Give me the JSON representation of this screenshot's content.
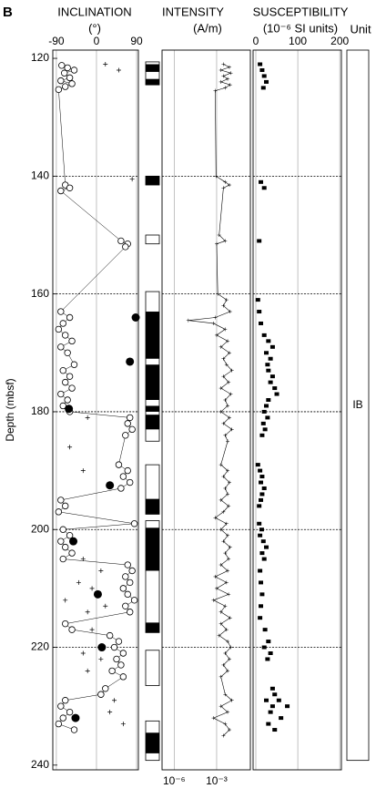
{
  "panel_label": "B",
  "chart_data": [
    {
      "type": "scatter",
      "title": "INCLINATION",
      "subtitle": "(°)",
      "ylabel": "Depth (mbsf)",
      "ylim": [
        118.6,
        240.8
      ],
      "yticks": [
        120,
        140,
        160,
        180,
        200,
        220,
        240
      ],
      "grid_lines": [
        140,
        160,
        180,
        200,
        220
      ],
      "grid": true,
      "xlim": [
        -98,
        94
      ],
      "xticks": [
        -90,
        0,
        90
      ],
      "xtick_position": "top",
      "series": [
        {
          "marker": "open-circle",
          "connected": true,
          "color": "#000000",
          "depth": [
            121.2,
            121.6,
            122.0,
            122.5,
            123.3,
            123.8,
            124.3,
            124.8,
            125.3,
            141.5,
            142.0,
            142.5,
            151,
            151.5,
            152,
            163,
            164,
            165,
            166,
            167,
            168,
            169,
            170,
            172,
            173,
            174,
            175,
            176,
            177,
            178,
            179,
            180,
            181,
            182,
            183,
            184,
            189,
            190,
            191,
            192,
            193,
            195,
            196,
            197,
            199,
            200,
            201,
            202,
            203,
            204,
            205,
            206,
            207,
            208,
            209,
            210,
            211,
            212,
            213,
            214,
            216,
            217,
            218,
            219,
            220,
            221,
            222,
            223,
            224,
            225,
            227,
            228,
            229,
            230,
            231,
            232,
            233,
            234
          ],
          "values": [
            -78,
            -65,
            -50,
            -72,
            -60,
            -80,
            -55,
            -70,
            -85,
            -70,
            -60,
            -80,
            55,
            70,
            65,
            -80,
            -60,
            -75,
            -85,
            -70,
            -55,
            -80,
            -65,
            -50,
            -75,
            -60,
            -70,
            -55,
            -80,
            -65,
            -75,
            -60,
            75,
            70,
            80,
            65,
            50,
            70,
            60,
            75,
            55,
            -80,
            -70,
            -85,
            85,
            -75,
            -60,
            -80,
            -70,
            -55,
            -75,
            70,
            80,
            65,
            75,
            60,
            70,
            85,
            65,
            75,
            -70,
            -55,
            30,
            50,
            40,
            60,
            45,
            55,
            35,
            60,
            20,
            10,
            -70,
            -80,
            -60,
            -75,
            -85,
            -50
          ]
        },
        {
          "marker": "cross",
          "connected": false,
          "color": "#000000",
          "depth": [
            121,
            122,
            140.5,
            181,
            186,
            190,
            205,
            207,
            209,
            210,
            212,
            213,
            214,
            217,
            221,
            222,
            224,
            229,
            231,
            233
          ],
          "values": [
            20,
            50,
            80,
            -20,
            -60,
            -30,
            -30,
            10,
            -40,
            -10,
            -70,
            20,
            -20,
            -10,
            -30,
            10,
            -20,
            40,
            30,
            60
          ]
        },
        {
          "marker": "filled-circle",
          "connected": false,
          "color": "#000000",
          "depth": [
            164,
            171.5,
            179.5,
            192.5,
            202,
            211,
            220,
            232
          ],
          "values": [
            88,
            75,
            -62,
            30,
            -52,
            3,
            12,
            -47
          ]
        }
      ]
    },
    {
      "type": "polarity",
      "blocks": [
        [
          120.6,
          124.5
        ],
        [
          140,
          141.5
        ],
        [
          150,
          151.5
        ],
        [
          159.6,
          185
        ],
        [
          189,
          197.4
        ],
        [
          198.5,
          217.5
        ],
        [
          220.5,
          226.5
        ],
        [
          232.5,
          239.2
        ]
      ],
      "black": [
        [
          121,
          122.3
        ],
        [
          123.5,
          124.5
        ],
        [
          140,
          141.5
        ],
        [
          163,
          171
        ],
        [
          172,
          178
        ],
        [
          179,
          180
        ],
        [
          180.5,
          183
        ],
        [
          194.8,
          197.4
        ],
        [
          199.7,
          207
        ],
        [
          215.8,
          217.5
        ],
        [
          234.5,
          238
        ]
      ]
    },
    {
      "type": "line",
      "title": "INTENSITY",
      "subtitle": "(A/m)",
      "xscale": "log",
      "grid": true,
      "xlim": [
        1.4e-07,
        0.24
      ],
      "xticks": [
        {
          "value": 1e-06,
          "label": "10⁻⁶"
        },
        {
          "value": 0.001,
          "label": "10⁻³"
        }
      ],
      "xtick_position": "bottom",
      "series": [
        {
          "color": "#000000",
          "depth": [
            121,
            121.5,
            122,
            122.5,
            123,
            123.5,
            124,
            124.5,
            125,
            125.5,
            140,
            141,
            141.5,
            142,
            150,
            151,
            151.5,
            160,
            161,
            162,
            163,
            164,
            164.5,
            165,
            166,
            167,
            168,
            169,
            170,
            171,
            172,
            173,
            174,
            175,
            176,
            177,
            178,
            179,
            180,
            181,
            182,
            183,
            184,
            185,
            189,
            190,
            191,
            192,
            193,
            194,
            195,
            196,
            197,
            198,
            199,
            200,
            201,
            202,
            203,
            204,
            205,
            206,
            207,
            208,
            209,
            210,
            211,
            212,
            213,
            214,
            215,
            216,
            217,
            218,
            219,
            220,
            221,
            222,
            223,
            224,
            225,
            228,
            229,
            230,
            231,
            232,
            233,
            234,
            235
          ],
          "values": [
            0.003,
            0.008,
            0.002,
            0.01,
            0.003,
            0.006,
            0.002,
            0.009,
            0.004,
            0.0008,
            0.0009,
            0.004,
            0.008,
            0.003,
            0.0015,
            0.004,
            0.001,
            0.0012,
            0.005,
            0.003,
            0.009,
            0.0008,
            1e-05,
            0.0006,
            0.004,
            0.001,
            0.006,
            0.002,
            0.008,
            0.003,
            0.005,
            0.012,
            0.003,
            0.007,
            0.002,
            0.01,
            0.004,
            0.006,
            0.002,
            0.008,
            0.003,
            0.012,
            0.004,
            0.006,
            0.002,
            0.006,
            0.003,
            0.008,
            0.004,
            0.006,
            0.002,
            0.007,
            0.003,
            0.0008,
            0.005,
            0.002,
            0.006,
            0.003,
            0.009,
            0.004,
            0.007,
            0.002,
            0.006,
            0.0008,
            0.005,
            0.001,
            0.007,
            0.0006,
            0.004,
            0.002,
            0.009,
            0.002,
            0.005,
            0.0015,
            0.006,
            0.01,
            0.004,
            0.008,
            0.003,
            0.006,
            0.002,
            0.004,
            0.012,
            0.002,
            0.006,
            0.0006,
            0.004,
            0.008,
            0.003
          ]
        }
      ]
    },
    {
      "type": "scatter",
      "title": "SUSCEPTIBILITY",
      "subtitle": "(10⁻⁶ SI units)",
      "grid": true,
      "xlim": [
        -6.5,
        204
      ],
      "xticks": [
        0,
        100,
        200
      ],
      "xtick_position": "top",
      "series": [
        {
          "marker": "filled-square",
          "connected": false,
          "color": "#000000",
          "depth": [
            121,
            122,
            123,
            124,
            125,
            141,
            142,
            151,
            161,
            163,
            165,
            167,
            168,
            169,
            170,
            171,
            172,
            173,
            174,
            175,
            176,
            177,
            178,
            179,
            180,
            181,
            182,
            183,
            184,
            189,
            190,
            191,
            192,
            193,
            194,
            195,
            196,
            199,
            200,
            201,
            202,
            203,
            204,
            205,
            207,
            209,
            211,
            213,
            215,
            217,
            219,
            220,
            221,
            222,
            227,
            228,
            229,
            230,
            231,
            232,
            233,
            234,
            230,
            229
          ],
          "values": [
            10,
            15,
            20,
            25,
            18,
            12,
            20,
            8,
            5,
            8,
            12,
            20,
            30,
            40,
            25,
            35,
            28,
            30,
            40,
            35,
            45,
            50,
            30,
            25,
            20,
            28,
            18,
            22,
            15,
            5,
            10,
            15,
            12,
            20,
            15,
            12,
            8,
            8,
            14,
            10,
            18,
            25,
            15,
            20,
            10,
            12,
            15,
            12,
            10,
            22,
            30,
            20,
            35,
            28,
            40,
            45,
            55,
            40,
            35,
            60,
            30,
            45,
            75,
            25
          ]
        }
      ]
    },
    {
      "type": "unit",
      "title": "Unit",
      "label": "IB",
      "ylim": [
        118.6,
        239.2
      ]
    }
  ]
}
